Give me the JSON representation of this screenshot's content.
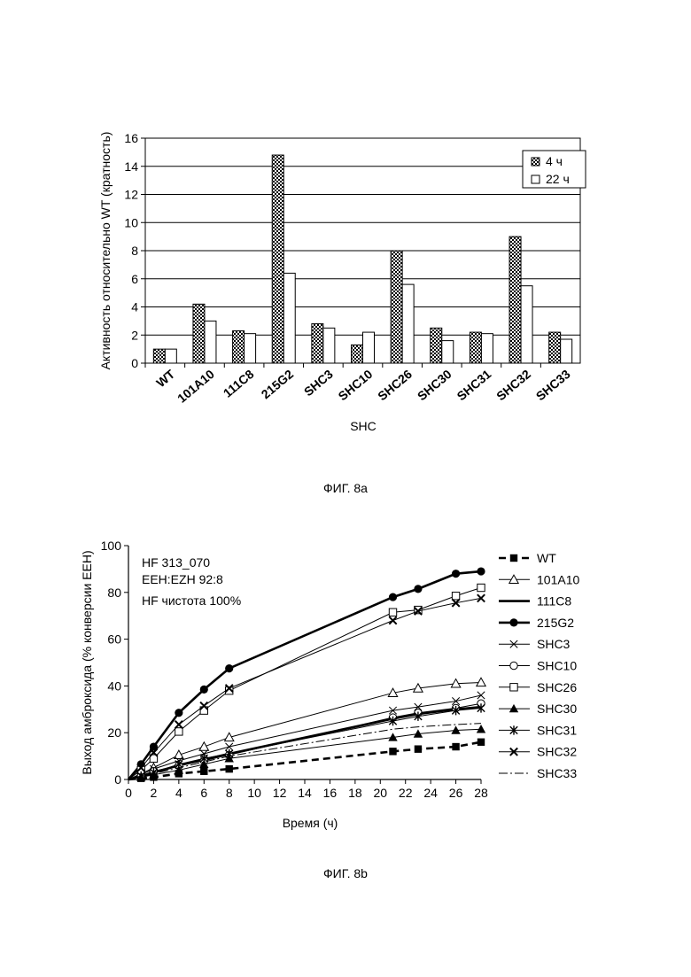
{
  "figures": [
    {
      "caption": "ФИГ. 8а"
    },
    {
      "caption": "ФИГ. 8b"
    }
  ],
  "chart_data": [
    {
      "type": "bar",
      "xlabel": "SHC",
      "ylabel": "Активность относительно WT (кратность)",
      "ylim": [
        0,
        16
      ],
      "yticks": [
        0,
        2,
        4,
        6,
        8,
        10,
        12,
        14,
        16
      ],
      "grid": true,
      "legend_position": "top-right",
      "categories": [
        "WT",
        "101A10",
        "111C8",
        "215G2",
        "SHC3",
        "SHC10",
        "SHC26",
        "SHC30",
        "SHC31",
        "SHC32",
        "SHC33"
      ],
      "series": [
        {
          "name": "4 ч",
          "fill": "hatched",
          "values": [
            1.0,
            4.2,
            2.3,
            14.8,
            2.8,
            1.3,
            8.0,
            2.5,
            2.2,
            9.0,
            2.2
          ]
        },
        {
          "name": "22 ч",
          "fill": "white",
          "values": [
            1.0,
            3.0,
            2.1,
            6.4,
            2.5,
            2.2,
            5.6,
            1.6,
            2.1,
            5.5,
            1.7
          ]
        }
      ]
    },
    {
      "type": "line",
      "xlabel": "Время (ч)",
      "ylabel": "Выход амброксида (% конверсии EEH)",
      "xlim": [
        0,
        28
      ],
      "ylim": [
        0,
        100
      ],
      "xticks": [
        0,
        2,
        4,
        6,
        8,
        10,
        12,
        14,
        16,
        18,
        20,
        22,
        24,
        26,
        28
      ],
      "yticks": [
        0,
        20,
        40,
        60,
        80,
        100
      ],
      "grid": false,
      "legend_position": "right",
      "annotations": [
        "HF 313_070",
        "EEH:EZH 92:8",
        "HF чистота 100%"
      ],
      "series": [
        {
          "name": "WT",
          "line": "dashed-bold",
          "marker": "square-filled",
          "x": [
            0,
            1,
            2,
            4,
            6,
            8,
            21,
            23,
            26,
            28
          ],
          "y": [
            0,
            0.5,
            1,
            2.5,
            3.5,
            4.5,
            12,
            13,
            14,
            16
          ]
        },
        {
          "name": "101A10",
          "line": "solid",
          "marker": "triangle-open",
          "x": [
            0,
            1,
            2,
            4,
            6,
            8,
            21,
            23,
            26,
            28
          ],
          "y": [
            0,
            2.5,
            5,
            10.5,
            14,
            18,
            37,
            39,
            41,
            41.5
          ]
        },
        {
          "name": "111C8",
          "line": "solid-bold",
          "marker": "none",
          "x": [
            0,
            1,
            2,
            4,
            6,
            8,
            21,
            23,
            26,
            28
          ],
          "y": [
            0,
            1.5,
            3,
            6,
            8.5,
            11,
            26,
            28,
            30,
            31
          ]
        },
        {
          "name": "215G2",
          "line": "solid-bold",
          "marker": "circle-filled",
          "x": [
            0,
            1,
            2,
            4,
            6,
            8,
            21,
            23,
            26,
            28
          ],
          "y": [
            0,
            6.5,
            14,
            28.5,
            38.5,
            47.5,
            78,
            81.5,
            88,
            89
          ]
        },
        {
          "name": "SHC3",
          "line": "solid",
          "marker": "x",
          "x": [
            0,
            1,
            2,
            4,
            6,
            8,
            21,
            23,
            26,
            28
          ],
          "y": [
            0,
            2,
            4.5,
            8,
            11,
            14,
            29.5,
            31,
            33.5,
            36
          ]
        },
        {
          "name": "SHC10",
          "line": "solid",
          "marker": "circle-open",
          "x": [
            0,
            1,
            2,
            4,
            6,
            8,
            21,
            23,
            26,
            28
          ],
          "y": [
            0,
            1.5,
            3.5,
            6,
            8,
            10.5,
            26.5,
            28.5,
            30.5,
            32.5
          ]
        },
        {
          "name": "SHC26",
          "line": "solid",
          "marker": "square-open",
          "x": [
            0,
            1,
            2,
            4,
            6,
            8,
            21,
            23,
            26,
            28
          ],
          "y": [
            0,
            4,
            9,
            20.5,
            29.5,
            38,
            71.5,
            72.5,
            78.5,
            82
          ]
        },
        {
          "name": "SHC30",
          "line": "solid",
          "marker": "triangle-filled",
          "x": [
            0,
            1,
            2,
            4,
            6,
            8,
            21,
            23,
            26,
            28
          ],
          "y": [
            0,
            1,
            2,
            4,
            6.5,
            9,
            18,
            19.5,
            21,
            21.5
          ]
        },
        {
          "name": "SHC31",
          "line": "solid",
          "marker": "asterisk",
          "x": [
            0,
            1,
            2,
            4,
            6,
            8,
            21,
            23,
            26,
            28
          ],
          "y": [
            0,
            1.5,
            3,
            6.5,
            9,
            11,
            25,
            27,
            29.5,
            30.5
          ]
        },
        {
          "name": "SHC32",
          "line": "solid",
          "marker": "x-bold",
          "x": [
            0,
            1,
            2,
            4,
            6,
            8,
            21,
            23,
            26,
            28
          ],
          "y": [
            0,
            5,
            11.5,
            23.5,
            31.5,
            39,
            68,
            72,
            75.5,
            77.5
          ]
        },
        {
          "name": "SHC33",
          "line": "dashdot",
          "marker": "none",
          "x": [
            0,
            1,
            2,
            4,
            6,
            8,
            21,
            23,
            26,
            28
          ],
          "y": [
            0,
            1,
            2.5,
            5,
            7.5,
            10,
            21.5,
            22.5,
            23.5,
            24
          ]
        }
      ]
    }
  ]
}
